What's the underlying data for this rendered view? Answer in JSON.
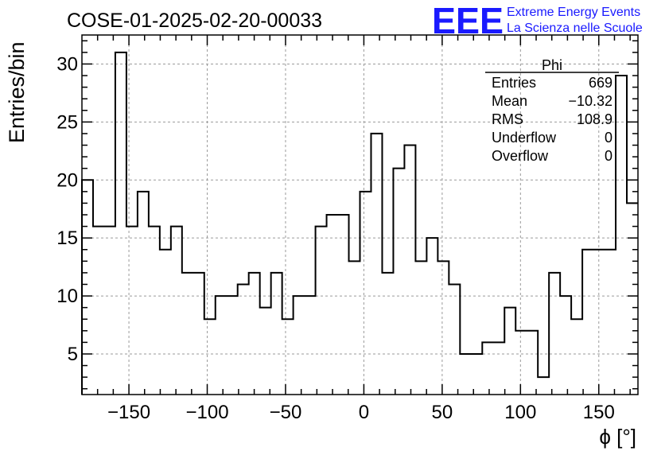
{
  "chart_data": {
    "type": "bar",
    "title": "COSE-01-2025-02-20-00033",
    "xlabel": "ϕ [°]",
    "ylabel": "Entries/bin",
    "xlim": [
      -180,
      175
    ],
    "ylim": [
      1.5,
      32.5
    ],
    "grid": true,
    "bin_width": 7.1,
    "x_ticks": [
      -150,
      -100,
      -50,
      0,
      50,
      100,
      150
    ],
    "x_tick_labels": [
      "−150",
      "−100",
      "−50",
      "0",
      "50",
      "100",
      "150"
    ],
    "y_ticks": [
      5,
      10,
      15,
      20,
      25,
      30
    ],
    "y_tick_labels": [
      "5",
      "10",
      "15",
      "20",
      "25",
      "30"
    ],
    "bins_start": [
      -180,
      -172.9,
      -165.8,
      -158.7,
      -151.6,
      -144.5,
      -137.4,
      -130.3,
      -123.2,
      -116.1,
      -109,
      -101.9,
      -94.8,
      -87.7,
      -80.6,
      -73.5,
      -66.4,
      -59.3,
      -52.2,
      -45.1,
      -38,
      -30.9,
      -23.8,
      -16.7,
      -9.6,
      -2.5,
      4.6,
      11.7,
      18.8,
      25.9,
      33,
      40.1,
      47.2,
      54.3,
      61.4,
      68.5,
      75.6,
      82.7,
      89.8,
      96.9,
      104,
      111.1,
      118.2,
      125.3,
      132.4,
      139.5,
      146.6,
      153.7,
      160.8,
      167.9
    ],
    "values": [
      20,
      16,
      16,
      31,
      16,
      19,
      16,
      14,
      16,
      12,
      12,
      8,
      10,
      10,
      11,
      12,
      9,
      12,
      8,
      10,
      10,
      16,
      17,
      17,
      13,
      19,
      24,
      12,
      21,
      23,
      13,
      15,
      13,
      11,
      5,
      5,
      6,
      6,
      9,
      7,
      7,
      3,
      12,
      10,
      8,
      14,
      14,
      14,
      29,
      18
    ]
  },
  "stats_box": {
    "title": "Phi",
    "rows": [
      {
        "label": "Entries",
        "value": "669"
      },
      {
        "label": "Mean",
        "value": "−10.32"
      },
      {
        "label": "RMS",
        "value": "108.9"
      },
      {
        "label": "Underflow",
        "value": "0"
      },
      {
        "label": "Overflow",
        "value": "0"
      }
    ]
  },
  "logo": {
    "mark": "EEE",
    "line1": "Extreme Energy Events",
    "line2": "La Scienza nelle Scuole",
    "color": "#1a1aff"
  },
  "colors": {
    "histogram": "#000000",
    "grid": "#9a9a9a",
    "logo": "#1a1aff"
  }
}
